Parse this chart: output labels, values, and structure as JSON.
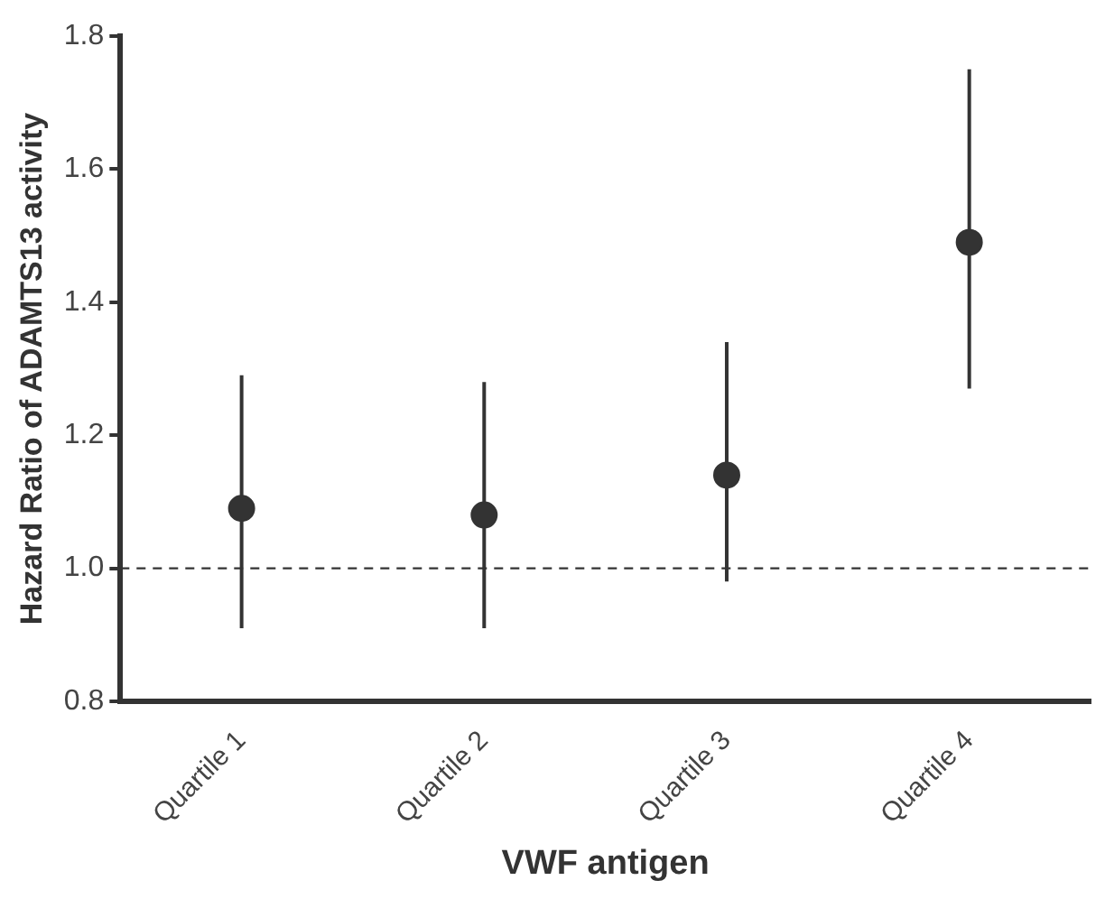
{
  "chart_data": {
    "type": "scatter",
    "xlabel": "VWF antigen",
    "ylabel": "Hazard Ratio of ADAMTS13 activity",
    "categories": [
      "Quartile 1",
      "Quartile 2",
      "Quartile 3",
      "Quartile 4"
    ],
    "series": [
      {
        "color": "#333333",
        "values": [
          1.09,
          1.08,
          1.14,
          1.49
        ],
        "errors": [
          [
            0.91,
            1.29
          ],
          [
            0.91,
            1.28
          ],
          [
            0.98,
            1.34
          ],
          [
            1.27,
            1.75
          ]
        ]
      }
    ],
    "ylim": [
      0.8,
      1.8
    ],
    "yticks": [
      {
        "value": 0.8,
        "label": "0.8"
      },
      {
        "value": 1.0,
        "label": "1.0"
      },
      {
        "value": 1.2,
        "label": "1.2"
      },
      {
        "value": 1.4,
        "label": "1.4"
      },
      {
        "value": 1.6,
        "label": "1.6"
      },
      {
        "value": 1.8,
        "label": "1.8"
      }
    ],
    "ref_lines": [
      {
        "axis": "y",
        "value": 1.0,
        "color": "#333333",
        "line_style": "dashed"
      }
    ],
    "grid": false,
    "legend": false,
    "marker": "circle"
  }
}
